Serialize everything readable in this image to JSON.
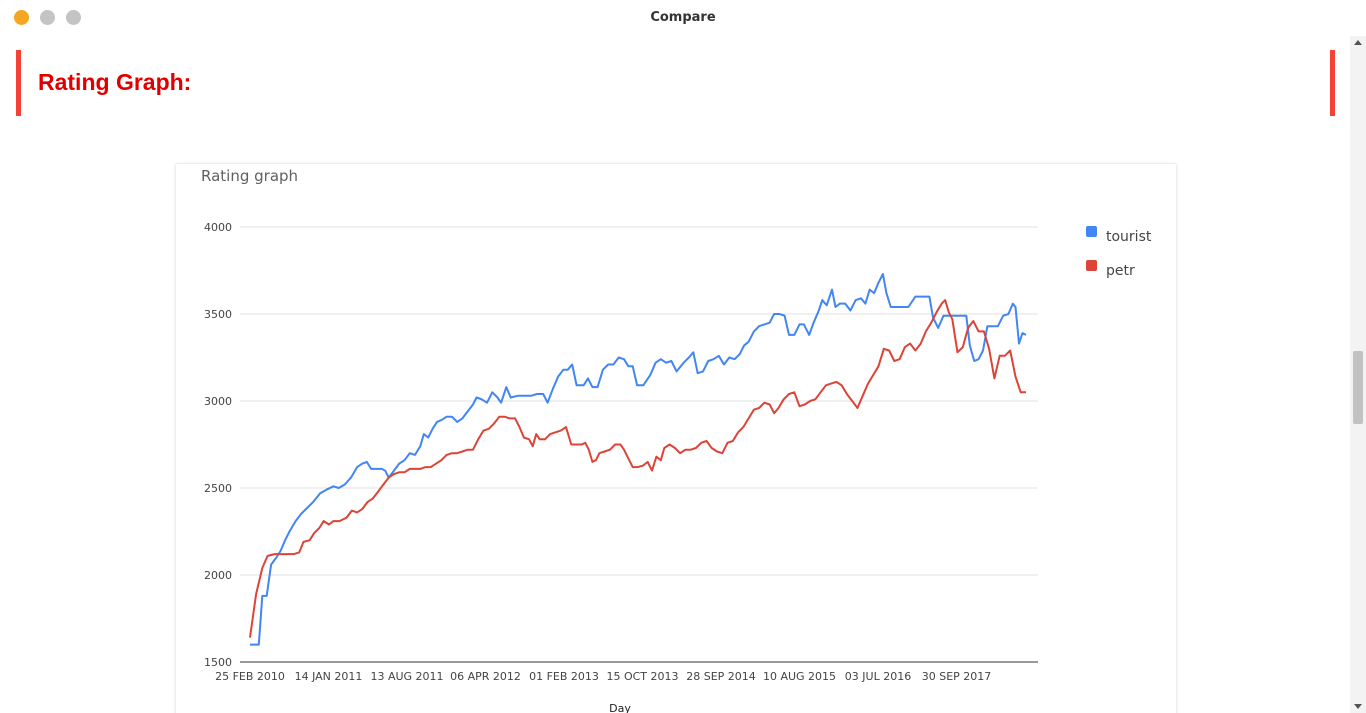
{
  "window": {
    "title": "Compare"
  },
  "section": {
    "title": "Rating Graph:"
  },
  "chart": {
    "title": "Rating graph",
    "xlabel": "Day",
    "x_ticks": [
      "25 FEB 2010",
      "14 JAN 2011",
      "13 AUG 2011",
      "06 APR 2012",
      "01 FEB 2013",
      "15 OCT 2013",
      "28 SEP 2014",
      "10 AUG 2015",
      "03 JUL 2016",
      "30 SEP 2017"
    ],
    "y_ticks": [
      "4000",
      "3500",
      "3000",
      "2500",
      "2000",
      "1500"
    ]
  },
  "chart_data": {
    "type": "line",
    "title": "Rating graph",
    "xlabel": "Day",
    "ylabel": "",
    "ylim": [
      1500,
      4000
    ],
    "grid": true,
    "legend_position": "right",
    "series": [
      {
        "name": "tourist",
        "color": "#4285f4",
        "values": [
          [
            0,
            1600
          ],
          [
            5,
            1600
          ],
          [
            10,
            1600
          ],
          [
            14,
            1880
          ],
          [
            19,
            1880
          ],
          [
            24,
            2060
          ],
          [
            30,
            2100
          ],
          [
            35,
            2140
          ],
          [
            40,
            2200
          ],
          [
            45,
            2250
          ],
          [
            52,
            2310
          ],
          [
            58,
            2350
          ],
          [
            64,
            2380
          ],
          [
            72,
            2420
          ],
          [
            80,
            2470
          ],
          [
            87,
            2490
          ],
          [
            95,
            2510
          ],
          [
            101,
            2500
          ],
          [
            108,
            2520
          ],
          [
            115,
            2560
          ],
          [
            122,
            2620
          ],
          [
            128,
            2640
          ],
          [
            133,
            2650
          ],
          [
            138,
            2610
          ],
          [
            144,
            2610
          ],
          [
            150,
            2610
          ],
          [
            154,
            2600
          ],
          [
            158,
            2560
          ],
          [
            164,
            2600
          ],
          [
            170,
            2640
          ],
          [
            176,
            2660
          ],
          [
            182,
            2700
          ],
          [
            188,
            2690
          ],
          [
            194,
            2740
          ],
          [
            198,
            2810
          ],
          [
            203,
            2790
          ],
          [
            208,
            2840
          ],
          [
            213,
            2880
          ],
          [
            218,
            2890
          ],
          [
            224,
            2910
          ],
          [
            230,
            2910
          ],
          [
            236,
            2880
          ],
          [
            242,
            2900
          ],
          [
            248,
            2940
          ],
          [
            254,
            2980
          ],
          [
            258,
            3020
          ],
          [
            264,
            3010
          ],
          [
            270,
            2990
          ],
          [
            276,
            3050
          ],
          [
            282,
            3020
          ],
          [
            286,
            2990
          ],
          [
            292,
            3080
          ],
          [
            297,
            3020
          ],
          [
            305,
            3030
          ],
          [
            312,
            3030
          ],
          [
            320,
            3030
          ],
          [
            327,
            3040
          ],
          [
            334,
            3040
          ],
          [
            339,
            2990
          ],
          [
            345,
            3070
          ],
          [
            351,
            3140
          ],
          [
            357,
            3180
          ],
          [
            362,
            3180
          ],
          [
            367,
            3210
          ],
          [
            372,
            3090
          ],
          [
            380,
            3090
          ],
          [
            385,
            3130
          ],
          [
            390,
            3080
          ],
          [
            396,
            3080
          ],
          [
            402,
            3180
          ],
          [
            408,
            3210
          ],
          [
            414,
            3210
          ],
          [
            420,
            3250
          ],
          [
            426,
            3240
          ],
          [
            431,
            3200
          ],
          [
            436,
            3200
          ],
          [
            441,
            3090
          ],
          [
            448,
            3090
          ],
          [
            456,
            3150
          ],
          [
            462,
            3220
          ],
          [
            468,
            3240
          ],
          [
            474,
            3220
          ],
          [
            480,
            3230
          ],
          [
            486,
            3170
          ],
          [
            494,
            3220
          ],
          [
            500,
            3250
          ],
          [
            505,
            3280
          ],
          [
            510,
            3160
          ],
          [
            516,
            3170
          ],
          [
            522,
            3230
          ],
          [
            528,
            3240
          ],
          [
            534,
            3260
          ],
          [
            540,
            3210
          ],
          [
            546,
            3250
          ],
          [
            552,
            3240
          ],
          [
            558,
            3270
          ],
          [
            563,
            3320
          ],
          [
            568,
            3340
          ],
          [
            574,
            3400
          ],
          [
            580,
            3430
          ],
          [
            586,
            3440
          ],
          [
            592,
            3450
          ],
          [
            597,
            3500
          ],
          [
            603,
            3500
          ],
          [
            609,
            3490
          ],
          [
            614,
            3380
          ],
          [
            620,
            3380
          ],
          [
            626,
            3440
          ],
          [
            631,
            3440
          ],
          [
            637,
            3380
          ],
          [
            642,
            3450
          ],
          [
            648,
            3520
          ],
          [
            652,
            3580
          ],
          [
            657,
            3550
          ],
          [
            663,
            3640
          ],
          [
            667,
            3540
          ],
          [
            672,
            3560
          ],
          [
            678,
            3560
          ],
          [
            684,
            3520
          ],
          [
            690,
            3580
          ],
          [
            696,
            3590
          ],
          [
            701,
            3560
          ],
          [
            706,
            3640
          ],
          [
            711,
            3620
          ],
          [
            716,
            3680
          ],
          [
            721,
            3730
          ],
          [
            725,
            3620
          ],
          [
            730,
            3540
          ],
          [
            740,
            3540
          ],
          [
            750,
            3540
          ],
          [
            758,
            3600
          ],
          [
            766,
            3600
          ],
          [
            774,
            3600
          ],
          [
            778,
            3480
          ],
          [
            784,
            3420
          ],
          [
            790,
            3490
          ],
          [
            798,
            3490
          ],
          [
            808,
            3490
          ],
          [
            816,
            3490
          ],
          [
            820,
            3320
          ],
          [
            825,
            3230
          ],
          [
            830,
            3240
          ],
          [
            835,
            3290
          ],
          [
            840,
            3430
          ],
          [
            846,
            3430
          ],
          [
            852,
            3430
          ],
          [
            858,
            3490
          ],
          [
            864,
            3500
          ],
          [
            869,
            3560
          ],
          [
            872,
            3540
          ],
          [
            876,
            3330
          ],
          [
            880,
            3390
          ],
          [
            884,
            3380
          ]
        ]
      },
      {
        "name": "petr",
        "color": "#db4437",
        "values": [
          [
            0,
            1640
          ],
          [
            7,
            1890
          ],
          [
            14,
            2040
          ],
          [
            20,
            2110
          ],
          [
            28,
            2120
          ],
          [
            38,
            2120
          ],
          [
            50,
            2120
          ],
          [
            56,
            2130
          ],
          [
            61,
            2190
          ],
          [
            68,
            2200
          ],
          [
            73,
            2240
          ],
          [
            79,
            2270
          ],
          [
            84,
            2310
          ],
          [
            90,
            2290
          ],
          [
            95,
            2310
          ],
          [
            102,
            2310
          ],
          [
            110,
            2330
          ],
          [
            116,
            2370
          ],
          [
            122,
            2360
          ],
          [
            128,
            2380
          ],
          [
            134,
            2420
          ],
          [
            140,
            2440
          ],
          [
            146,
            2480
          ],
          [
            152,
            2520
          ],
          [
            158,
            2560
          ],
          [
            164,
            2580
          ],
          [
            170,
            2590
          ],
          [
            176,
            2590
          ],
          [
            182,
            2610
          ],
          [
            188,
            2610
          ],
          [
            194,
            2610
          ],
          [
            200,
            2620
          ],
          [
            206,
            2620
          ],
          [
            212,
            2640
          ],
          [
            218,
            2660
          ],
          [
            224,
            2690
          ],
          [
            230,
            2700
          ],
          [
            236,
            2700
          ],
          [
            242,
            2710
          ],
          [
            248,
            2720
          ],
          [
            254,
            2720
          ],
          [
            260,
            2780
          ],
          [
            266,
            2830
          ],
          [
            272,
            2840
          ],
          [
            278,
            2870
          ],
          [
            284,
            2910
          ],
          [
            290,
            2910
          ],
          [
            296,
            2900
          ],
          [
            302,
            2900
          ],
          [
            307,
            2850
          ],
          [
            312,
            2790
          ],
          [
            318,
            2780
          ],
          [
            322,
            2740
          ],
          [
            326,
            2810
          ],
          [
            330,
            2780
          ],
          [
            336,
            2780
          ],
          [
            342,
            2810
          ],
          [
            348,
            2820
          ],
          [
            354,
            2830
          ],
          [
            360,
            2850
          ],
          [
            366,
            2750
          ],
          [
            372,
            2750
          ],
          [
            378,
            2750
          ],
          [
            382,
            2760
          ],
          [
            386,
            2720
          ],
          [
            390,
            2650
          ],
          [
            394,
            2660
          ],
          [
            398,
            2700
          ],
          [
            404,
            2710
          ],
          [
            410,
            2720
          ],
          [
            416,
            2750
          ],
          [
            422,
            2750
          ],
          [
            426,
            2720
          ],
          [
            430,
            2680
          ],
          [
            436,
            2620
          ],
          [
            442,
            2620
          ],
          [
            448,
            2630
          ],
          [
            453,
            2650
          ],
          [
            458,
            2600
          ],
          [
            463,
            2680
          ],
          [
            468,
            2660
          ],
          [
            472,
            2730
          ],
          [
            478,
            2750
          ],
          [
            484,
            2730
          ],
          [
            490,
            2700
          ],
          [
            496,
            2720
          ],
          [
            502,
            2720
          ],
          [
            508,
            2730
          ],
          [
            514,
            2760
          ],
          [
            520,
            2770
          ],
          [
            526,
            2730
          ],
          [
            532,
            2710
          ],
          [
            538,
            2700
          ],
          [
            544,
            2760
          ],
          [
            550,
            2770
          ],
          [
            556,
            2820
          ],
          [
            562,
            2850
          ],
          [
            568,
            2900
          ],
          [
            574,
            2950
          ],
          [
            580,
            2960
          ],
          [
            586,
            2990
          ],
          [
            592,
            2980
          ],
          [
            597,
            2930
          ],
          [
            602,
            2960
          ],
          [
            608,
            3010
          ],
          [
            614,
            3040
          ],
          [
            620,
            3050
          ],
          [
            626,
            2970
          ],
          [
            632,
            2980
          ],
          [
            638,
            3000
          ],
          [
            644,
            3010
          ],
          [
            650,
            3050
          ],
          [
            656,
            3090
          ],
          [
            662,
            3100
          ],
          [
            668,
            3110
          ],
          [
            674,
            3090
          ],
          [
            680,
            3040
          ],
          [
            686,
            3000
          ],
          [
            692,
            2960
          ],
          [
            698,
            3030
          ],
          [
            704,
            3100
          ],
          [
            710,
            3150
          ],
          [
            716,
            3200
          ],
          [
            722,
            3300
          ],
          [
            728,
            3290
          ],
          [
            734,
            3230
          ],
          [
            740,
            3240
          ],
          [
            746,
            3310
          ],
          [
            752,
            3330
          ],
          [
            758,
            3290
          ],
          [
            764,
            3330
          ],
          [
            770,
            3400
          ],
          [
            776,
            3450
          ],
          [
            782,
            3510
          ],
          [
            788,
            3560
          ],
          [
            792,
            3580
          ],
          [
            796,
            3510
          ],
          [
            800,
            3470
          ],
          [
            806,
            3280
          ],
          [
            812,
            3310
          ],
          [
            818,
            3420
          ],
          [
            824,
            3460
          ],
          [
            830,
            3400
          ],
          [
            836,
            3400
          ],
          [
            842,
            3300
          ],
          [
            848,
            3130
          ],
          [
            854,
            3260
          ],
          [
            860,
            3260
          ],
          [
            866,
            3290
          ],
          [
            872,
            3140
          ],
          [
            878,
            3050
          ],
          [
            884,
            3050
          ]
        ]
      }
    ]
  }
}
